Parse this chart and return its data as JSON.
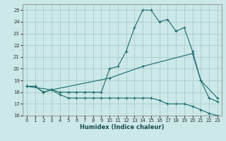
{
  "xlabel": "Humidex (Indice chaleur)",
  "bg_color": "#cce8e8",
  "grid_color": "#aacccc",
  "line_color": "#1a6b6b",
  "xlim": [
    -0.5,
    23.5
  ],
  "ylim": [
    16,
    25.5
  ],
  "xticks": [
    0,
    1,
    2,
    3,
    4,
    5,
    6,
    7,
    8,
    9,
    10,
    11,
    12,
    13,
    14,
    15,
    16,
    17,
    18,
    19,
    20,
    21,
    22,
    23
  ],
  "yticks": [
    16,
    17,
    18,
    19,
    20,
    21,
    22,
    23,
    24,
    25
  ],
  "line1_x": [
    0,
    1,
    2,
    3,
    4,
    5,
    6,
    7,
    8,
    9,
    10,
    11,
    12,
    13,
    14,
    15,
    16,
    17,
    18,
    19,
    20,
    21,
    22,
    23
  ],
  "line1_y": [
    18.5,
    18.5,
    18.0,
    18.2,
    17.8,
    17.5,
    17.5,
    17.5,
    17.5,
    17.5,
    17.5,
    17.5,
    17.5,
    17.5,
    17.5,
    17.5,
    17.3,
    17.0,
    17.0,
    17.0,
    16.8,
    16.5,
    16.2,
    16.0
  ],
  "line2_x": [
    0,
    1,
    2,
    3,
    4,
    5,
    6,
    7,
    8,
    9,
    10,
    11,
    12,
    13,
    14,
    15,
    16,
    17,
    18,
    19,
    20,
    21,
    22,
    23
  ],
  "line2_y": [
    18.5,
    18.5,
    18.0,
    18.2,
    18.0,
    18.0,
    18.0,
    18.0,
    18.0,
    18.0,
    20.0,
    20.2,
    21.5,
    23.5,
    25.0,
    25.0,
    24.0,
    24.2,
    23.2,
    23.5,
    21.5,
    19.0,
    17.5,
    17.2
  ],
  "line3_x": [
    0,
    3,
    10,
    14,
    20,
    21,
    23
  ],
  "line3_y": [
    18.5,
    18.2,
    19.2,
    20.2,
    21.3,
    19.0,
    17.5
  ]
}
